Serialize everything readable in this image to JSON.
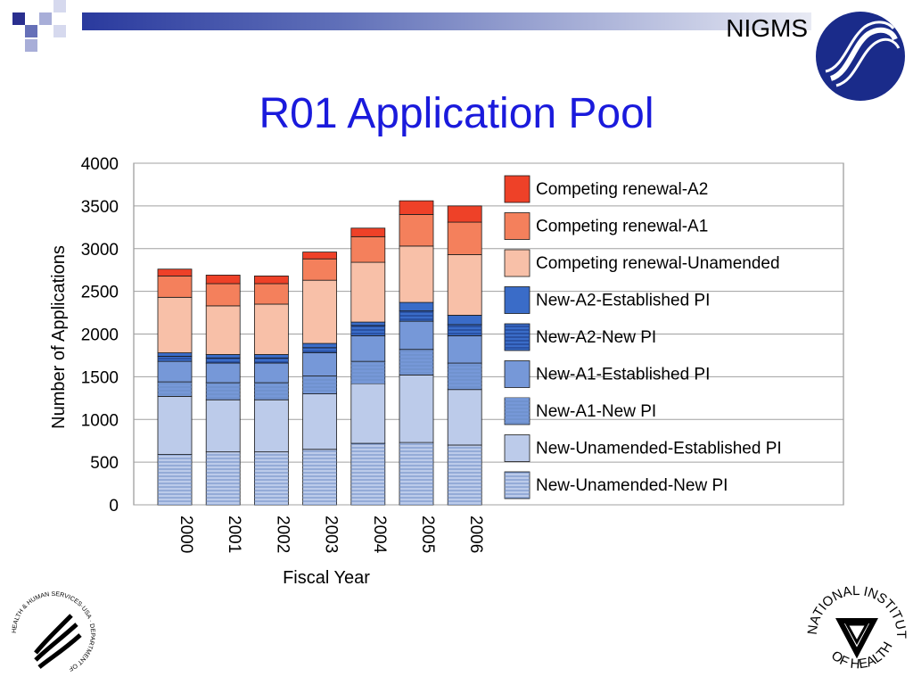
{
  "brand": "NIGMS",
  "title": "R01 Application Pool",
  "colors": {
    "title": "#1a1adc",
    "Competing renewal-A2": "#ee4128",
    "Competing renewal-A1": "#f4805c",
    "Competing renewal-Unamended": "#f8c0a8",
    "New-A2-Established PI": "#3a6cc8",
    "New-A2-New PI": "#3a6cc8",
    "New-A1-Established PI": "#7698d8",
    "New-A1-New PI": "#7698d8",
    "New-Unamended-Established PI": "#bccbea",
    "New-Unamended-New PI": "#bccbea"
  },
  "logos": {
    "hhs": "HEALTH & HUMAN SERVICES·USA · DEPARTMENT OF",
    "nih_top": "NATIONAL INSTITUTES",
    "nih_bottom": "OF HEALTH"
  },
  "chart_data": {
    "type": "bar",
    "stacked": true,
    "categories": [
      "2000",
      "2001",
      "2002",
      "2003",
      "2004",
      "2005",
      "2006"
    ],
    "xlabel": "Fiscal Year",
    "ylabel": "Number of Applications",
    "ylim": [
      0,
      4000
    ],
    "yticks": [
      0,
      500,
      1000,
      1500,
      2000,
      2500,
      3000,
      3500,
      4000
    ],
    "grid": true,
    "legend_position": "right",
    "series": [
      {
        "name": "New-Unamended-New PI",
        "values": [
          590,
          620,
          620,
          650,
          720,
          730,
          700
        ],
        "hatch": true
      },
      {
        "name": "New-Unamended-Established PI",
        "values": [
          680,
          610,
          610,
          650,
          700,
          790,
          650
        ],
        "hatch": false
      },
      {
        "name": "New-A1-New PI",
        "values": [
          170,
          200,
          200,
          210,
          260,
          300,
          310
        ],
        "hatch": true
      },
      {
        "name": "New-A1-Established PI",
        "values": [
          240,
          230,
          230,
          270,
          300,
          330,
          320
        ],
        "hatch": false
      },
      {
        "name": "New-A2-New PI",
        "values": [
          60,
          60,
          60,
          60,
          120,
          120,
          130
        ],
        "hatch": true
      },
      {
        "name": "New-A2-Established PI",
        "values": [
          40,
          40,
          40,
          50,
          40,
          100,
          110
        ],
        "hatch": false
      },
      {
        "name": "Competing renewal-Unamended",
        "values": [
          650,
          570,
          590,
          740,
          700,
          660,
          710
        ],
        "hatch": false
      },
      {
        "name": "Competing renewal-A1",
        "values": [
          250,
          260,
          240,
          250,
          300,
          370,
          380
        ],
        "hatch": false
      },
      {
        "name": "Competing renewal-A2",
        "values": [
          80,
          100,
          90,
          80,
          100,
          160,
          190
        ],
        "hatch": false
      }
    ],
    "legend_order": [
      "Competing renewal-A2",
      "Competing renewal-A1",
      "Competing renewal-Unamended",
      "New-A2-Established PI",
      "New-A2-New PI",
      "New-A1-Established PI",
      "New-A1-New PI",
      "New-Unamended-Established PI",
      "New-Unamended-New PI"
    ]
  }
}
